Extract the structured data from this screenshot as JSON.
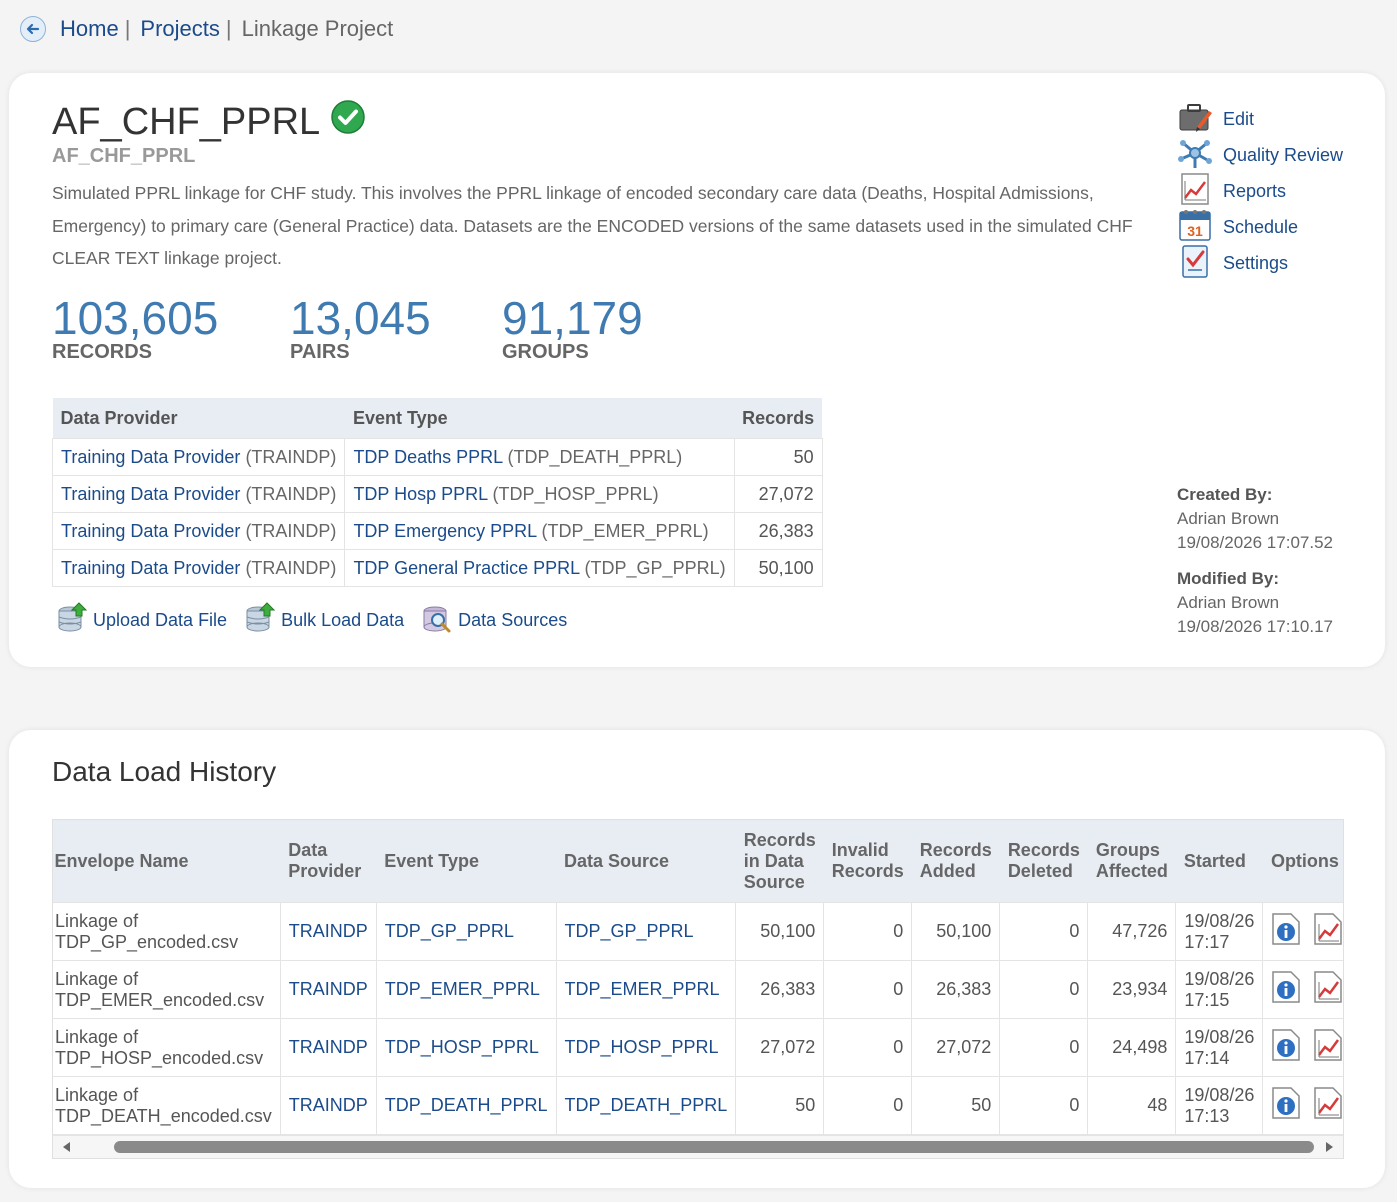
{
  "breadcrumb": {
    "home": "Home",
    "projects": "Projects",
    "current": "Linkage Project",
    "sep": "|"
  },
  "project": {
    "title": "AF_CHF_PPRL",
    "code": "AF_CHF_PPRL",
    "description": "Simulated PPRL linkage for CHF study. This involves the PPRL linkage of encoded secondary care data (Deaths, Hospital Admissions, Emergency) to primary care (General Practice) data. Datasets are the ENCODED versions of the same datasets used in the simulated CHF CLEAR TEXT linkage project.",
    "status_color": "#2fa84f"
  },
  "stats": [
    {
      "value": "103,605",
      "label": "RECORDS"
    },
    {
      "value": "13,045",
      "label": "PAIRS"
    },
    {
      "value": "91,179",
      "label": "GROUPS"
    }
  ],
  "providers_table": {
    "headers": [
      "Data Provider",
      "Event Type",
      "Records"
    ],
    "rows": [
      {
        "provider": "Training Data Provider",
        "provider_code": "(TRAINDP)",
        "event": "TDP Deaths PPRL",
        "event_code": "(TDP_DEATH_PPRL)",
        "records": "50"
      },
      {
        "provider": "Training Data Provider",
        "provider_code": "(TRAINDP)",
        "event": "TDP Hosp PPRL",
        "event_code": "(TDP_HOSP_PPRL)",
        "records": "27,072"
      },
      {
        "provider": "Training Data Provider",
        "provider_code": "(TRAINDP)",
        "event": "TDP Emergency PPRL",
        "event_code": "(TDP_EMER_PPRL)",
        "records": "26,383"
      },
      {
        "provider": "Training Data Provider",
        "provider_code": "(TRAINDP)",
        "event": "TDP General Practice PPRL",
        "event_code": "(TDP_GP_PPRL)",
        "records": "50,100"
      }
    ]
  },
  "actions": {
    "upload": "Upload Data File",
    "bulk": "Bulk Load Data",
    "sources": "Data Sources"
  },
  "side_menu": {
    "edit": "Edit",
    "quality": "Quality Review",
    "reports": "Reports",
    "schedule": "Schedule",
    "settings": "Settings",
    "calendar_day": "31"
  },
  "meta": {
    "created_label": "Created By:",
    "created_by": "Adrian Brown",
    "created_at": "19/08/2026 17:07.52",
    "modified_label": "Modified By:",
    "modified_by": "Adrian Brown",
    "modified_at": "19/08/2026 17:10.17"
  },
  "history": {
    "title": "Data Load History",
    "headers": {
      "envelope": "Envelope Name",
      "provider_l1": "Data",
      "provider_l2": "Provider",
      "event": "Event Type",
      "source": "Data Source",
      "recs_l1": "Records",
      "recs_l2": "in Data",
      "recs_l3": "Source",
      "invalid_l1": "Invalid",
      "invalid_l2": "Records",
      "added_l1": "Records",
      "added_l2": "Added",
      "deleted_l1": "Records",
      "deleted_l2": "Deleted",
      "groups_l1": "Groups",
      "groups_l2": "Affected",
      "started": "Started",
      "options": "Options"
    },
    "rows": [
      {
        "env1": "Linkage of",
        "env2": "TDP_GP_encoded.csv",
        "provider": "TRAINDP",
        "event": "TDP_GP_PPRL",
        "source": "TDP_GP_PPRL",
        "recs": "50,100",
        "invalid": "0",
        "added": "50,100",
        "deleted": "0",
        "groups": "47,726",
        "date": "19/08/26",
        "time": "17:17"
      },
      {
        "env1": "Linkage of",
        "env2": "TDP_EMER_encoded.csv",
        "provider": "TRAINDP",
        "event": "TDP_EMER_PPRL",
        "source": "TDP_EMER_PPRL",
        "recs": "26,383",
        "invalid": "0",
        "added": "26,383",
        "deleted": "0",
        "groups": "23,934",
        "date": "19/08/26",
        "time": "17:15"
      },
      {
        "env1": "Linkage of",
        "env2": "TDP_HOSP_encoded.csv",
        "provider": "TRAINDP",
        "event": "TDP_HOSP_PPRL",
        "source": "TDP_HOSP_PPRL",
        "recs": "27,072",
        "invalid": "0",
        "added": "27,072",
        "deleted": "0",
        "groups": "24,498",
        "date": "19/08/26",
        "time": "17:14"
      },
      {
        "env1": "Linkage of",
        "env2": "TDP_DEATH_encoded.csv",
        "provider": "TRAINDP",
        "event": "TDP_DEATH_PPRL",
        "source": "TDP_DEATH_PPRL",
        "recs": "50",
        "invalid": "0",
        "added": "50",
        "deleted": "0",
        "groups": "48",
        "date": "19/08/26",
        "time": "17:13"
      }
    ]
  },
  "icons": {
    "back": "back-arrow-icon",
    "check": "check-circle-icon",
    "upload": "database-upload-icon",
    "sources": "database-search-icon",
    "edit": "briefcase-edit-icon",
    "quality": "network-icon",
    "reports": "chart-icon",
    "schedule": "calendar-icon",
    "settings": "checklist-icon",
    "info": "info-icon"
  },
  "colors": {
    "link": "#1b4b8a",
    "stat": "#3f7ab0",
    "header_bg": "#e8edf4"
  }
}
